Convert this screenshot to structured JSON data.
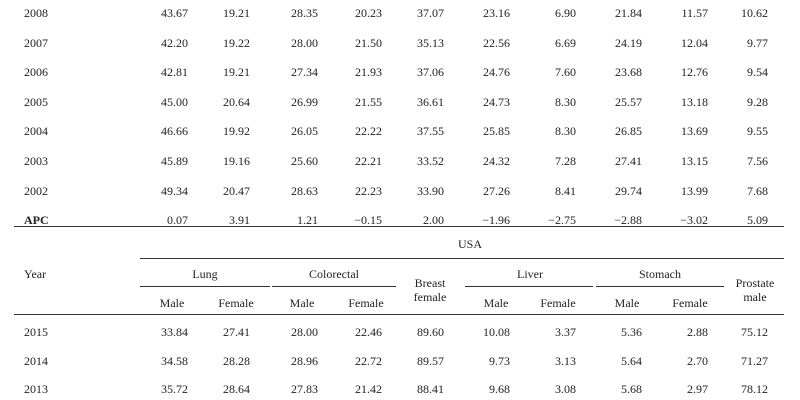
{
  "top_rows": [
    {
      "year": "2008",
      "values": [
        "43.67",
        "19.21",
        "28.35",
        "20.23",
        "37.07",
        "23.16",
        "6.90",
        "21.84",
        "11.57",
        "10.62"
      ]
    },
    {
      "year": "2007",
      "values": [
        "42.20",
        "19.22",
        "28.00",
        "21.50",
        "35.13",
        "22.56",
        "6.69",
        "24.19",
        "12.04",
        "9.77"
      ]
    },
    {
      "year": "2006",
      "values": [
        "42.81",
        "19.21",
        "27.34",
        "21.93",
        "37.06",
        "24.76",
        "7.60",
        "23.68",
        "12.76",
        "9.54"
      ]
    },
    {
      "year": "2005",
      "values": [
        "45.00",
        "20.64",
        "26.99",
        "21.55",
        "36.61",
        "24.73",
        "8.30",
        "25.57",
        "13.18",
        "9.28"
      ]
    },
    {
      "year": "2004",
      "values": [
        "46.66",
        "19.92",
        "26.05",
        "22.22",
        "37.55",
        "25.85",
        "8.30",
        "26.85",
        "13.69",
        "9.55"
      ]
    },
    {
      "year": "2003",
      "values": [
        "45.89",
        "19.16",
        "25.60",
        "22.21",
        "33.52",
        "24.32",
        "7.28",
        "27.41",
        "13.15",
        "7.56"
      ]
    },
    {
      "year": "2002",
      "values": [
        "49.34",
        "20.47",
        "28.63",
        "22.23",
        "33.90",
        "27.26",
        "8.41",
        "29.74",
        "13.99",
        "7.68"
      ]
    },
    {
      "year": "APC",
      "values": [
        "0.07",
        "3.91",
        "1.21",
        "−0.15",
        "2.00",
        "−1.96",
        "−2.75",
        "−2.88",
        "−3.02",
        "5.09"
      ]
    }
  ],
  "usa_section": {
    "title": "USA",
    "year_header": "Year",
    "groups": {
      "lung": "Lung",
      "colorectal": "Colorectal",
      "breast_line1": "Breast",
      "breast_line2": "female",
      "liver": "Liver",
      "stomach": "Stomach",
      "prostate_line1": "Prostate",
      "prostate_line2": "male"
    },
    "sub": [
      "Male",
      "Female",
      "Male",
      "Female",
      "Male",
      "Female",
      "Male",
      "Female"
    ],
    "rows": [
      {
        "year": "2015",
        "values": [
          "33.84",
          "27.41",
          "28.00",
          "22.46",
          "89.60",
          "10.08",
          "3.37",
          "5.36",
          "2.88",
          "75.12"
        ]
      },
      {
        "year": "2014",
        "values": [
          "34.58",
          "28.28",
          "28.96",
          "22.72",
          "89.57",
          "9.73",
          "3.13",
          "5.64",
          "2.70",
          "71.27"
        ]
      },
      {
        "year": "2013",
        "values": [
          "35.72",
          "28.64",
          "27.83",
          "21.42",
          "88.41",
          "9.68",
          "3.08",
          "5.68",
          "2.97",
          "78.12"
        ]
      }
    ]
  }
}
